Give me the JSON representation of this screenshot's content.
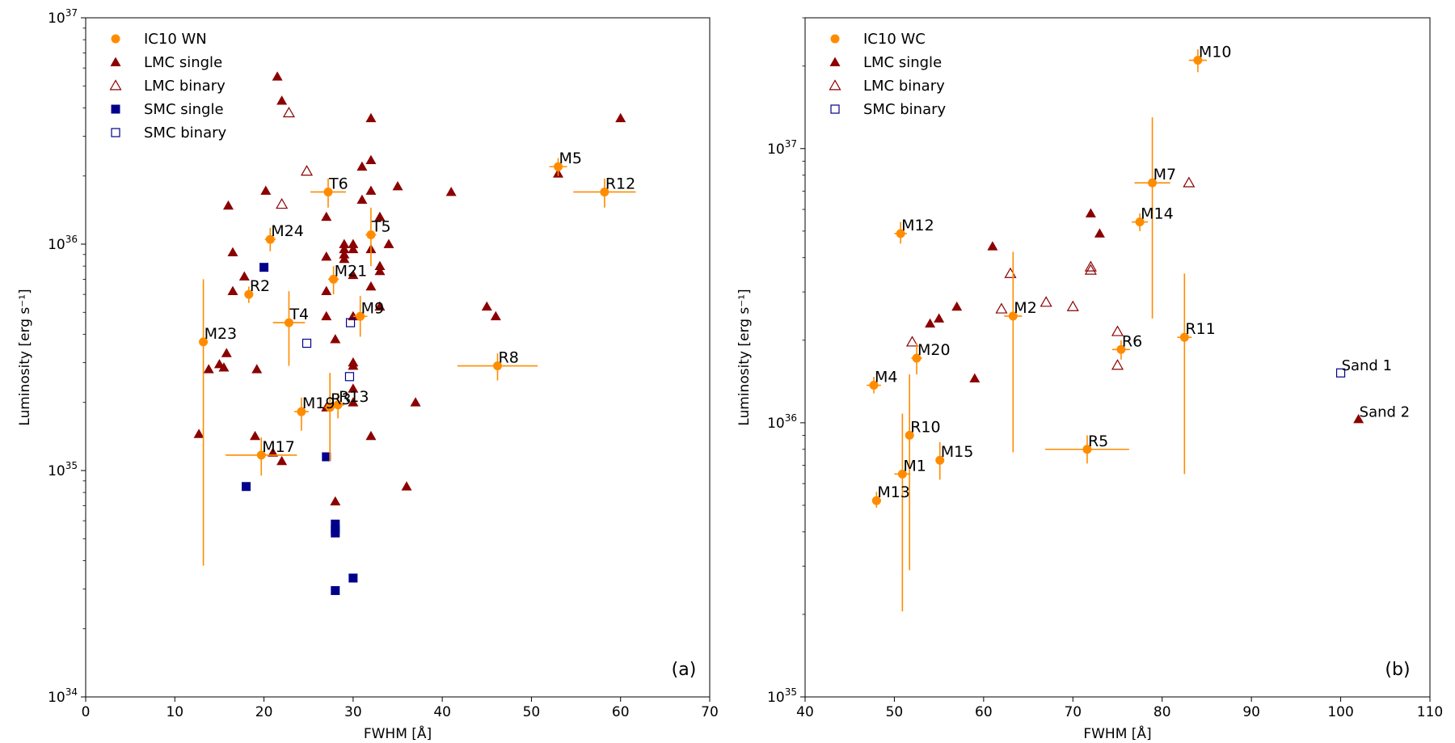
{
  "colors": {
    "ic10": "#ff8c00",
    "lmc": "#8b0000",
    "smc": "#00008b",
    "axis": "#000000"
  },
  "chart_data": [
    {
      "type": "scatter",
      "panel_label": "(a)",
      "xlabel": "FWHM [Å]",
      "ylabel": "Luminosity [erg s⁻¹]",
      "xlim": [
        0,
        70
      ],
      "ylim": [
        1e+34,
        1e+37
      ],
      "yscale": "log",
      "grid": false,
      "legend_position": "top-left",
      "x_ticks": [
        0,
        10,
        20,
        30,
        40,
        50,
        60,
        70
      ],
      "x_tick_labels": [
        "0",
        "10",
        "20",
        "30",
        "40",
        "50",
        "60",
        "70"
      ],
      "y_tick_labels": [
        {
          "value": 1e+34,
          "mantissa": "10",
          "exp": "34"
        },
        {
          "value": 1e+35,
          "mantissa": "10",
          "exp": "35"
        },
        {
          "value": 1e+36,
          "mantissa": "10",
          "exp": "36"
        },
        {
          "value": 1e+37,
          "mantissa": "10",
          "exp": "37"
        }
      ],
      "legend": [
        {
          "label": "IC10 WN",
          "marker": "circle",
          "series": "ic10"
        },
        {
          "label": "LMC single",
          "marker": "triangle",
          "series": "lmc"
        },
        {
          "label": "LMC binary",
          "marker": "triangle-open",
          "series": "lmc"
        },
        {
          "label": "SMC single",
          "marker": "square",
          "series": "smc"
        },
        {
          "label": "SMC binary",
          "marker": "square-open",
          "series": "smc"
        }
      ],
      "ic10": [
        {
          "name": "M5",
          "x": 53,
          "y": 2.2e+36,
          "xerr": 1.0,
          "ylo": 2e+36,
          "yhi": 2.4e+36
        },
        {
          "name": "R12",
          "x": 58.2,
          "y": 1.7e+36,
          "xerr": 3.5,
          "ylo": 1.45e+36,
          "yhi": 1.95e+36
        },
        {
          "name": "T6",
          "x": 27.2,
          "y": 1.7e+36,
          "xerr": 2.0,
          "ylo": 1.45e+36,
          "yhi": 1.95e+36
        },
        {
          "name": "T5",
          "x": 32,
          "y": 1.1e+36,
          "xerr": 0.6,
          "ylo": 8e+35,
          "yhi": 1.45e+36
        },
        {
          "name": "M24",
          "x": 20.7,
          "y": 1.05e+36,
          "xerr": 0.6,
          "ylo": 9.3e+35,
          "yhi": 1.18e+36
        },
        {
          "name": "M21",
          "x": 27.8,
          "y": 7e+35,
          "xerr": 0.6,
          "ylo": 6e+35,
          "yhi": 8e+35
        },
        {
          "name": "R2",
          "x": 18.3,
          "y": 6e+35,
          "xerr": 0.5,
          "ylo": 5.5e+35,
          "yhi": 6.5e+35
        },
        {
          "name": "M9",
          "x": 30.8,
          "y": 4.8e+35,
          "xerr": 0.8,
          "ylo": 3.9e+35,
          "yhi": 5.9e+35
        },
        {
          "name": "T4",
          "x": 22.8,
          "y": 4.5e+35,
          "xerr": 1.8,
          "ylo": 2.9e+35,
          "yhi": 6.2e+35
        },
        {
          "name": "M23",
          "x": 13.2,
          "y": 3.7e+35,
          "xerr": 0.4,
          "ylo": 3.8e+34,
          "yhi": 7e+35
        },
        {
          "name": "R8",
          "x": 46.2,
          "y": 2.9e+35,
          "xerr": 4.5,
          "ylo": 2.5e+35,
          "yhi": 3.3e+35
        },
        {
          "name": "R13",
          "x": 28.3,
          "y": 1.95e+35,
          "xerr": 0.7,
          "ylo": 1.7e+35,
          "yhi": 2.2e+35
        },
        {
          "name": "R3",
          "x": 27.4,
          "y": 1.9e+35,
          "xerr": 0.6,
          "ylo": 1.1e+35,
          "yhi": 2.7e+35
        },
        {
          "name": "M19",
          "x": 24.2,
          "y": 1.82e+35,
          "xerr": 0.8,
          "ylo": 1.5e+35,
          "yhi": 2.1e+35
        },
        {
          "name": "M17",
          "x": 19.7,
          "y": 1.17e+35,
          "xerr": 4.0,
          "ylo": 9.5e+34,
          "yhi": 1.4e+35
        }
      ],
      "lmc_single": [
        {
          "x": 21.5,
          "y": 5.5e+36
        },
        {
          "x": 22.0,
          "y": 4.3e+36
        },
        {
          "x": 32.0,
          "y": 3.6e+36
        },
        {
          "x": 60.0,
          "y": 3.6e+36
        },
        {
          "x": 32.0,
          "y": 2.35e+36
        },
        {
          "x": 31.0,
          "y": 2.2e+36
        },
        {
          "x": 53.0,
          "y": 2.05e+36
        },
        {
          "x": 35.0,
          "y": 1.8e+36
        },
        {
          "x": 20.2,
          "y": 1.72e+36
        },
        {
          "x": 32.0,
          "y": 1.72e+36
        },
        {
          "x": 41.0,
          "y": 1.7e+36
        },
        {
          "x": 31.0,
          "y": 1.57e+36
        },
        {
          "x": 16.0,
          "y": 1.48e+36
        },
        {
          "x": 27.0,
          "y": 1.32e+36
        },
        {
          "x": 33.0,
          "y": 1.32e+36
        },
        {
          "x": 29.0,
          "y": 1e+36
        },
        {
          "x": 30.0,
          "y": 1e+36
        },
        {
          "x": 34.0,
          "y": 1e+36
        },
        {
          "x": 29.0,
          "y": 9.5e+35
        },
        {
          "x": 30.0,
          "y": 9.5e+35
        },
        {
          "x": 32.0,
          "y": 9.5e+35
        },
        {
          "x": 16.5,
          "y": 9.2e+35
        },
        {
          "x": 29.0,
          "y": 9e+35
        },
        {
          "x": 27.0,
          "y": 8.8e+35
        },
        {
          "x": 29.0,
          "y": 8.6e+35
        },
        {
          "x": 33.0,
          "y": 8e+35
        },
        {
          "x": 33.0,
          "y": 7.6e+35
        },
        {
          "x": 17.8,
          "y": 7.2e+35
        },
        {
          "x": 30.0,
          "y": 7.3e+35
        },
        {
          "x": 32.0,
          "y": 6.5e+35
        },
        {
          "x": 16.5,
          "y": 6.2e+35
        },
        {
          "x": 27.0,
          "y": 6.2e+35
        },
        {
          "x": 33.0,
          "y": 5.3e+35
        },
        {
          "x": 45.0,
          "y": 5.3e+35
        },
        {
          "x": 46.0,
          "y": 4.8e+35
        },
        {
          "x": 27.0,
          "y": 4.8e+35
        },
        {
          "x": 30.0,
          "y": 4.8e+35
        },
        {
          "x": 28.0,
          "y": 3.8e+35
        },
        {
          "x": 15.8,
          "y": 3.3e+35
        },
        {
          "x": 30.0,
          "y": 3e+35
        },
        {
          "x": 15.0,
          "y": 2.95e+35
        },
        {
          "x": 30.0,
          "y": 2.9e+35
        },
        {
          "x": 15.5,
          "y": 2.85e+35
        },
        {
          "x": 13.8,
          "y": 2.8e+35
        },
        {
          "x": 19.2,
          "y": 2.8e+35
        },
        {
          "x": 30.0,
          "y": 2.3e+35
        },
        {
          "x": 30.0,
          "y": 2e+35
        },
        {
          "x": 37.0,
          "y": 2e+35
        },
        {
          "x": 27.0,
          "y": 1.9e+35
        },
        {
          "x": 12.7,
          "y": 1.45e+35
        },
        {
          "x": 19.0,
          "y": 1.42e+35
        },
        {
          "x": 32.0,
          "y": 1.42e+35
        },
        {
          "x": 21.0,
          "y": 1.2e+35
        },
        {
          "x": 22.0,
          "y": 1.1e+35
        },
        {
          "x": 36.0,
          "y": 8.5e+34
        },
        {
          "x": 28.0,
          "y": 7.3e+34
        }
      ],
      "lmc_binary": [
        {
          "x": 22.8,
          "y": 3.8e+36
        },
        {
          "x": 24.8,
          "y": 2.1e+36
        },
        {
          "x": 22.0,
          "y": 1.5e+36
        }
      ],
      "smc_single": [
        {
          "x": 20.0,
          "y": 7.9e+35
        },
        {
          "x": 27.0,
          "y": 1.15e+35
        },
        {
          "x": 18.0,
          "y": 8.5e+34
        },
        {
          "x": 28.0,
          "y": 5.8e+34
        },
        {
          "x": 28.0,
          "y": 5.5e+34
        },
        {
          "x": 28.0,
          "y": 5.3e+34
        },
        {
          "x": 30.0,
          "y": 3.35e+34
        },
        {
          "x": 28.0,
          "y": 2.95e+34
        }
      ],
      "smc_binary": [
        {
          "x": 29.7,
          "y": 4.5e+35
        },
        {
          "x": 24.8,
          "y": 3.65e+35
        },
        {
          "x": 29.6,
          "y": 2.6e+35
        }
      ]
    },
    {
      "type": "scatter",
      "panel_label": "(b)",
      "xlabel": "FWHM [Å]",
      "ylabel": "Luminosity [erg s⁻¹]",
      "xlim": [
        40,
        110
      ],
      "ylim": [
        1e+35,
        3e+37
      ],
      "yscale": "log",
      "grid": false,
      "legend_position": "top-left",
      "x_ticks": [
        40,
        50,
        60,
        70,
        80,
        90,
        100,
        110
      ],
      "x_tick_labels": [
        "40",
        "50",
        "60",
        "70",
        "80",
        "90",
        "100",
        "110"
      ],
      "y_tick_labels": [
        {
          "value": 1e+35,
          "mantissa": "10",
          "exp": "35"
        },
        {
          "value": 1e+36,
          "mantissa": "10",
          "exp": "36"
        },
        {
          "value": 1e+37,
          "mantissa": "10",
          "exp": "37"
        }
      ],
      "legend": [
        {
          "label": "IC10 WC",
          "marker": "circle",
          "series": "ic10"
        },
        {
          "label": "LMC single",
          "marker": "triangle",
          "series": "lmc"
        },
        {
          "label": "LMC binary",
          "marker": "triangle-open",
          "series": "lmc"
        },
        {
          "label": "SMC binary",
          "marker": "square-open",
          "series": "smc"
        }
      ],
      "ic10": [
        {
          "name": "M10",
          "x": 84.0,
          "y": 2.1e+37,
          "xerr": 1.0,
          "ylo": 1.9e+37,
          "yhi": 2.3e+37
        },
        {
          "name": "M7",
          "x": 78.9,
          "y": 7.5e+36,
          "xerr": 2.0,
          "ylo": 2.4e+36,
          "yhi": 1.3e+37
        },
        {
          "name": "M14",
          "x": 77.5,
          "y": 5.4e+36,
          "xerr": 0.9,
          "ylo": 5e+36,
          "yhi": 5.8e+36
        },
        {
          "name": "M12",
          "x": 50.7,
          "y": 4.9e+36,
          "xerr": 0.7,
          "ylo": 4.5e+36,
          "yhi": 5.4e+36
        },
        {
          "name": "M2",
          "x": 63.3,
          "y": 2.45e+36,
          "xerr": 1.0,
          "ylo": 7.8e+35,
          "yhi": 4.2e+36
        },
        {
          "name": "R11",
          "x": 82.5,
          "y": 2.05e+36,
          "xerr": 0.8,
          "ylo": 6.5e+35,
          "yhi": 3.5e+36
        },
        {
          "name": "R6",
          "x": 75.4,
          "y": 1.85e+36,
          "xerr": 1.0,
          "ylo": 1.7e+36,
          "yhi": 2e+36
        },
        {
          "name": "M20",
          "x": 52.5,
          "y": 1.72e+36,
          "xerr": 0.6,
          "ylo": 1.5e+36,
          "yhi": 1.95e+36
        },
        {
          "name": "M4",
          "x": 47.7,
          "y": 1.37e+36,
          "xerr": 0.8,
          "ylo": 1.28e+36,
          "yhi": 1.47e+36
        },
        {
          "name": "R10",
          "x": 51.7,
          "y": 9e+35,
          "xerr": 0.4,
          "ylo": 2.9e+35,
          "yhi": 1.5e+36
        },
        {
          "name": "R5",
          "x": 71.6,
          "y": 8e+35,
          "xerr": 4.7,
          "ylo": 7.1e+35,
          "yhi": 9e+35
        },
        {
          "name": "M15",
          "x": 55.1,
          "y": 7.3e+35,
          "xerr": 0.2,
          "ylo": 6.2e+35,
          "yhi": 8.5e+35
        },
        {
          "name": "M1",
          "x": 50.9,
          "y": 6.5e+35,
          "xerr": 0.9,
          "ylo": 2.05e+35,
          "yhi": 1.08e+36
        },
        {
          "name": "M13",
          "x": 48.0,
          "y": 5.2e+35,
          "xerr": 0.5,
          "ylo": 4.9e+35,
          "yhi": 5.6e+35
        }
      ],
      "lmc_single": [
        {
          "x": 72.0,
          "y": 5.8e+36
        },
        {
          "x": 73.0,
          "y": 4.9e+36
        },
        {
          "x": 61.0,
          "y": 4.4e+36
        },
        {
          "x": 57.0,
          "y": 2.65e+36
        },
        {
          "x": 55.0,
          "y": 2.4e+36
        },
        {
          "x": 54.0,
          "y": 2.3e+36
        },
        {
          "x": 59.0,
          "y": 1.45e+36
        },
        {
          "x": 102.0,
          "y": 1.03e+36
        }
      ],
      "lmc_binary": [
        {
          "x": 83.0,
          "y": 7.5e+36
        },
        {
          "x": 72.0,
          "y": 3.7e+36
        },
        {
          "x": 72.0,
          "y": 3.6e+36
        },
        {
          "x": 63.0,
          "y": 3.5e+36
        },
        {
          "x": 67.0,
          "y": 2.75e+36
        },
        {
          "x": 70.0,
          "y": 2.65e+36
        },
        {
          "x": 62.0,
          "y": 2.6e+36
        },
        {
          "x": 75.0,
          "y": 2.15e+36
        },
        {
          "x": 52.0,
          "y": 1.97e+36
        },
        {
          "x": 75.0,
          "y": 1.62e+36
        }
      ],
      "smc_binary": [
        {
          "x": 100.0,
          "y": 1.52e+36
        }
      ],
      "annotations": [
        {
          "text": "Sand 1",
          "x": 100.0,
          "y": 1.52e+36
        },
        {
          "text": "Sand 2",
          "x": 102.0,
          "y": 1.03e+36
        }
      ]
    }
  ]
}
